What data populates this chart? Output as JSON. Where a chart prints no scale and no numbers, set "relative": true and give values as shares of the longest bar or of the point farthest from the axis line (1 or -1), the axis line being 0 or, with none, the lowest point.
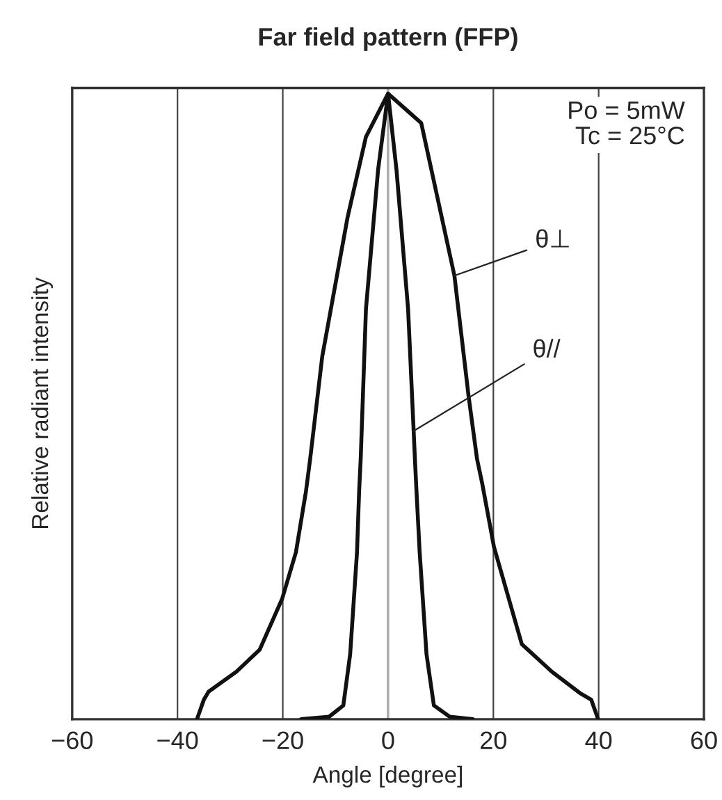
{
  "chart_data": {
    "type": "line",
    "title": "Far field pattern (FFP)",
    "xlabel": "Angle [degree]",
    "ylabel": "Relative radiant intensity",
    "relative": true,
    "tick_labels": "x",
    "grid": "x",
    "marker": "none",
    "line_style": "solid",
    "xlim": [
      -60,
      60
    ],
    "xticks": [
      {
        "value": -60,
        "label": "−60"
      },
      {
        "value": -40,
        "label": "−40"
      },
      {
        "value": -20,
        "label": "−20"
      },
      0,
      20,
      40,
      60
    ],
    "ref_lines": [
      {
        "axis": "x",
        "value": 0,
        "color": "#aaaaaa"
      }
    ],
    "annotations": [
      "Po = 5mW\nTc = 25°C",
      {
        "text": "θ⊥",
        "x": 12.6,
        "y": 0.709
      },
      {
        "text": "θ//",
        "x": 4.7,
        "y": 0.46
      }
    ],
    "series": [
      {
        "color": "#111111",
        "x": [
          -36.3,
          -35.0,
          -34.1,
          -28.8,
          -24.4,
          -20.1,
          -17.5,
          -15.6,
          -14.8,
          -12.5,
          -7.7,
          -4.2,
          0,
          6.3,
          12.6,
          15.3,
          16.9,
          17.9,
          20.1,
          25.4,
          31.1,
          36.4,
          38.6,
          39.9
        ],
        "values": [
          0,
          0.031,
          0.044,
          0.076,
          0.111,
          0.193,
          0.267,
          0.364,
          0.416,
          0.58,
          0.802,
          0.931,
          1,
          0.953,
          0.709,
          0.516,
          0.416,
          0.376,
          0.276,
          0.12,
          0.076,
          0.042,
          0.031,
          0
        ]
      },
      {
        "color": "#111111",
        "x": [
          -16.5,
          -11.2,
          -8.5,
          -7.2,
          -5.9,
          -5.5,
          -5.2,
          -4.2,
          -1.9,
          0,
          1.6,
          3.8,
          5.1,
          5.4,
          6.0,
          7.3,
          8.7,
          11.7,
          16.1
        ],
        "values": [
          0,
          0.004,
          0.022,
          0.104,
          0.267,
          0.364,
          0.416,
          0.656,
          0.878,
          1,
          0.878,
          0.656,
          0.416,
          0.364,
          0.267,
          0.104,
          0.022,
          0.004,
          0
        ]
      }
    ]
  }
}
